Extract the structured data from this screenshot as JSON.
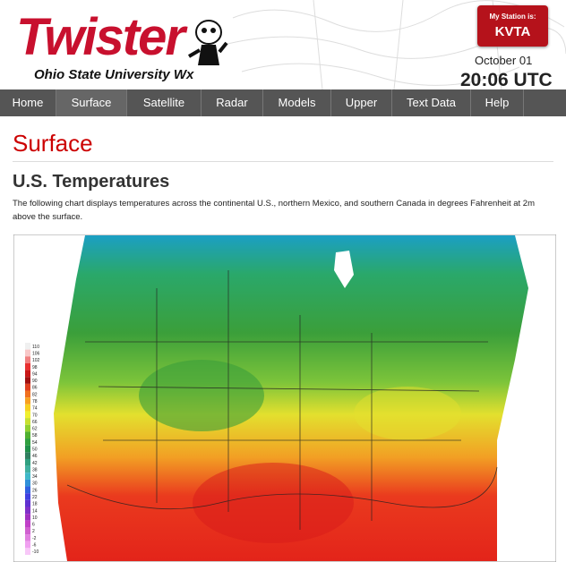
{
  "header": {
    "logo": "Twister",
    "subtitle": "Ohio State University Wx",
    "station_label": "My Station is:",
    "station": "KVTA",
    "date": "October 01",
    "time": "20:06 UTC"
  },
  "nav": [
    "Home",
    "Surface",
    "Satellite",
    "Radar",
    "Models",
    "Upper",
    "Text Data",
    "Help"
  ],
  "page": {
    "title": "Surface",
    "heading": "U.S. Temperatures",
    "description": "The following chart displays temperatures across the continental U.S., northern Mexico, and southern Canada in degrees Fahrenheit at 2m above the surface."
  },
  "legend": {
    "labels": [
      110,
      106,
      102,
      98,
      94,
      90,
      86,
      82,
      78,
      74,
      70,
      66,
      62,
      58,
      54,
      50,
      46,
      42,
      38,
      34,
      30,
      26,
      22,
      18,
      14,
      10,
      6,
      2,
      -2,
      -6,
      -10
    ]
  }
}
